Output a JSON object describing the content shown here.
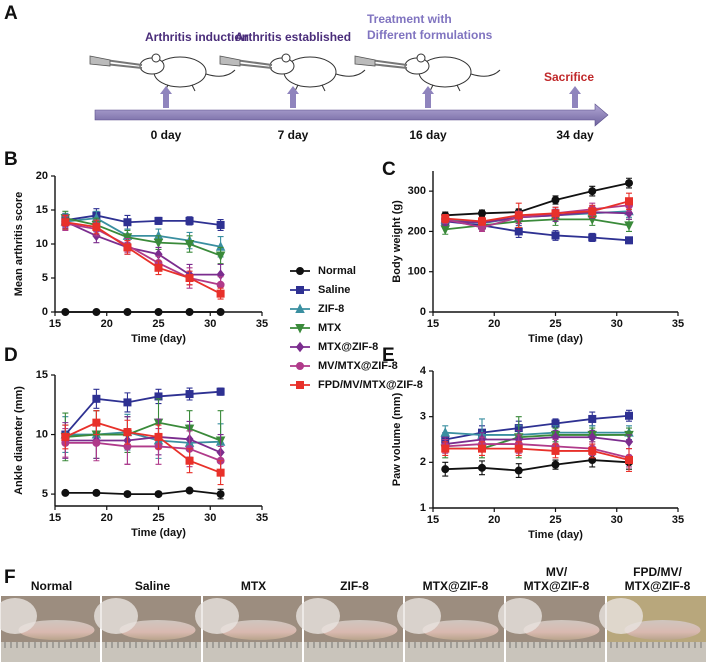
{
  "panel_labels": [
    "A",
    "B",
    "C",
    "D",
    "E",
    "F"
  ],
  "timeline": {
    "steps": [
      [
        "Arthritis induction"
      ],
      [
        "Arthritis established"
      ],
      [
        "Treatment with",
        "Different formulations"
      ],
      [
        "Sacrifice"
      ]
    ],
    "days": [
      "0 day",
      "7 day",
      "16 day",
      "34 day"
    ]
  },
  "photos": {
    "labels": [
      [
        "Normal"
      ],
      [
        "Saline"
      ],
      [
        "MTX"
      ],
      [
        "ZIF-8"
      ],
      [
        "MTX@ZIF-8"
      ],
      [
        "MV/",
        "MTX@ZIF-8"
      ],
      [
        "FPD/MV/",
        "MTX@ZIF-8"
      ]
    ]
  },
  "chart_data": [
    {
      "type": "line",
      "ylabel": "Mean arthritis score",
      "xlabel": "Time (day)",
      "xlim": [
        15,
        35
      ],
      "xticks": [
        15,
        20,
        25,
        30,
        35
      ],
      "ylim": [
        0,
        20
      ],
      "yticks": [
        0,
        5,
        10,
        15,
        20
      ],
      "x": [
        16,
        19,
        22,
        25,
        28,
        31
      ],
      "series": [
        {
          "name": "Normal",
          "color": "#111111",
          "marker": "circle",
          "values": [
            0,
            0,
            0,
            0,
            0,
            0
          ],
          "errors": [
            0,
            0,
            0,
            0,
            0,
            0
          ]
        },
        {
          "name": "Saline",
          "color": "#2e3192",
          "marker": "square",
          "values": [
            13.5,
            14.2,
            13.2,
            13.4,
            13.4,
            12.8
          ],
          "errors": [
            1,
            1,
            1,
            0.5,
            0.6,
            0.8
          ]
        },
        {
          "name": "ZIF-8",
          "color": "#3a8fa0",
          "marker": "tri-up",
          "values": [
            13.3,
            13.8,
            11.2,
            11.2,
            10.5,
            9.6
          ],
          "errors": [
            1.2,
            1,
            1,
            1,
            1.2,
            1.5
          ]
        },
        {
          "name": "MTX",
          "color": "#3a8a3a",
          "marker": "tri-down",
          "values": [
            13.8,
            12.8,
            11,
            10.2,
            10,
            8.3
          ],
          "errors": [
            1,
            1,
            1,
            1,
            1.2,
            1.2
          ]
        },
        {
          "name": "MTX@ZIF-8",
          "color": "#7b2d8e",
          "marker": "diamond",
          "values": [
            13.3,
            11.2,
            9.5,
            8.5,
            5.5,
            5.5
          ],
          "errors": [
            1,
            1,
            1,
            1,
            1.5,
            1.5
          ]
        },
        {
          "name": "MV/MTX@ZIF-8",
          "color": "#b03a8a",
          "marker": "circle",
          "values": [
            13,
            12.2,
            9.8,
            7.2,
            5,
            4
          ],
          "errors": [
            1,
            1,
            1,
            1,
            1.5,
            1.2
          ]
        },
        {
          "name": "FPD/MV/MTX@ZIF-8",
          "color": "#e8312a",
          "marker": "square",
          "values": [
            13.2,
            12.5,
            9.5,
            6.5,
            5,
            2.7
          ],
          "errors": [
            1,
            1,
            1,
            1,
            1,
            0.8
          ]
        }
      ]
    },
    {
      "type": "line",
      "ylabel": "Body weight (g)",
      "xlabel": "Time (day)",
      "xlim": [
        15,
        35
      ],
      "xticks": [
        15,
        20,
        25,
        30,
        35
      ],
      "ylim": [
        0,
        350
      ],
      "yticks": [
        0,
        100,
        200,
        300
      ],
      "x": [
        16,
        19,
        22,
        25,
        28,
        31
      ],
      "series": [
        {
          "color": "#111111",
          "marker": "circle",
          "values": [
            240,
            245,
            248,
            278,
            300,
            320
          ],
          "errors": [
            8,
            8,
            8,
            10,
            12,
            12
          ]
        },
        {
          "color": "#2e3192",
          "marker": "square",
          "values": [
            225,
            215,
            200,
            190,
            185,
            178
          ],
          "errors": [
            10,
            10,
            15,
            12,
            10,
            8
          ]
        },
        {
          "color": "#3a8fa0",
          "marker": "tri-up",
          "values": [
            230,
            220,
            235,
            240,
            245,
            250
          ],
          "errors": [
            12,
            12,
            15,
            15,
            15,
            15
          ]
        },
        {
          "color": "#3a8a3a",
          "marker": "tri-down",
          "values": [
            205,
            215,
            225,
            230,
            230,
            215
          ],
          "errors": [
            12,
            12,
            15,
            15,
            15,
            15
          ]
        },
        {
          "color": "#7b2d8e",
          "marker": "diamond",
          "values": [
            225,
            222,
            235,
            240,
            248,
            245
          ],
          "errors": [
            10,
            10,
            15,
            15,
            15,
            15
          ]
        },
        {
          "color": "#b03a8a",
          "marker": "circle",
          "values": [
            230,
            210,
            235,
            245,
            255,
            265
          ],
          "errors": [
            10,
            10,
            15,
            15,
            15,
            15
          ]
        },
        {
          "color": "#e8312a",
          "marker": "square",
          "values": [
            232,
            225,
            240,
            245,
            250,
            275
          ],
          "errors": [
            10,
            10,
            30,
            15,
            15,
            20
          ]
        }
      ]
    },
    {
      "type": "line",
      "ylabel": "Ankle diameter (mm)",
      "xlabel": "Time (day)",
      "xlim": [
        15,
        35
      ],
      "xticks": [
        15,
        20,
        25,
        30,
        35
      ],
      "ylim": [
        4,
        15
      ],
      "yticks": [
        5,
        10,
        15
      ],
      "x": [
        16,
        19,
        22,
        25,
        28,
        31
      ],
      "series": [
        {
          "color": "#111111",
          "marker": "circle",
          "values": [
            5.1,
            5.1,
            5,
            5,
            5.3,
            5
          ],
          "errors": [
            0.1,
            0.2,
            0.2,
            0.2,
            0.1,
            0.4
          ]
        },
        {
          "color": "#2e3192",
          "marker": "square",
          "values": [
            10,
            13,
            12.7,
            13.2,
            13.4,
            13.6
          ],
          "errors": [
            0.8,
            0.8,
            0.8,
            0.6,
            0.5,
            0.3
          ]
        },
        {
          "color": "#3a8fa0",
          "marker": "tri-up",
          "values": [
            10,
            10,
            10.2,
            9.5,
            9.3,
            9.4
          ],
          "errors": [
            1.5,
            2,
            1.5,
            1.5,
            1.5,
            1.5
          ]
        },
        {
          "color": "#3a8a3a",
          "marker": "tri-down",
          "values": [
            9.8,
            10,
            10,
            11,
            10.5,
            9.5
          ],
          "errors": [
            2,
            2,
            1.5,
            2,
            1.5,
            2.5
          ]
        },
        {
          "color": "#7b2d8e",
          "marker": "diamond",
          "values": [
            9.5,
            9.5,
            9.5,
            9.8,
            9.6,
            8.5
          ],
          "errors": [
            1.5,
            1.5,
            2,
            1.5,
            1.5,
            1.5
          ]
        },
        {
          "color": "#b03a8a",
          "marker": "circle",
          "values": [
            9.3,
            9.3,
            9,
            9,
            8.8,
            7.8
          ],
          "errors": [
            1.2,
            1.5,
            1.5,
            1.5,
            1.5,
            1.2
          ]
        },
        {
          "color": "#e8312a",
          "marker": "square",
          "values": [
            9.8,
            11,
            10.2,
            9.8,
            7.8,
            6.8
          ],
          "errors": [
            1,
            1,
            1,
            1,
            1,
            1
          ]
        }
      ]
    },
    {
      "type": "line",
      "ylabel": "Paw volume (mm)",
      "xlabel": "Time (day)",
      "xlim": [
        15,
        35
      ],
      "xticks": [
        15,
        20,
        25,
        30,
        35
      ],
      "ylim": [
        1,
        4
      ],
      "yticks": [
        1,
        2,
        3,
        4
      ],
      "x": [
        16,
        19,
        22,
        25,
        28,
        31
      ],
      "series": [
        {
          "color": "#111111",
          "marker": "circle",
          "values": [
            1.85,
            1.88,
            1.82,
            1.95,
            2.05,
            2
          ],
          "errors": [
            0.15,
            0.15,
            0.15,
            0.1,
            0.15,
            0.15
          ]
        },
        {
          "color": "#2e3192",
          "marker": "square",
          "values": [
            2.5,
            2.65,
            2.75,
            2.85,
            2.95,
            3.02
          ],
          "errors": [
            0.15,
            0.15,
            0.15,
            0.1,
            0.15,
            0.12
          ]
        },
        {
          "color": "#3a8fa0",
          "marker": "tri-up",
          "values": [
            2.65,
            2.6,
            2.6,
            2.65,
            2.65,
            2.65
          ],
          "errors": [
            0.15,
            0.35,
            0.2,
            0.15,
            0.15,
            0.15
          ]
        },
        {
          "color": "#3a8a3a",
          "marker": "tri-down",
          "values": [
            2.3,
            2.3,
            2.55,
            2.6,
            2.6,
            2.6
          ],
          "errors": [
            0.2,
            0.2,
            0.45,
            0.15,
            0.15,
            0.15
          ]
        },
        {
          "color": "#7b2d8e",
          "marker": "diamond",
          "values": [
            2.4,
            2.5,
            2.5,
            2.55,
            2.55,
            2.45
          ],
          "errors": [
            0.15,
            0.15,
            0.2,
            0.15,
            0.15,
            0.15
          ]
        },
        {
          "color": "#b03a8a",
          "marker": "circle",
          "values": [
            2.35,
            2.4,
            2.4,
            2.35,
            2.3,
            2.1
          ],
          "errors": [
            0.15,
            0.15,
            0.2,
            0.15,
            0.15,
            0.2
          ]
        },
        {
          "color": "#e8312a",
          "marker": "square",
          "values": [
            2.3,
            2.3,
            2.3,
            2.25,
            2.25,
            2.05
          ],
          "errors": [
            0.15,
            0.15,
            0.15,
            0.15,
            0.15,
            0.25
          ]
        }
      ]
    }
  ]
}
